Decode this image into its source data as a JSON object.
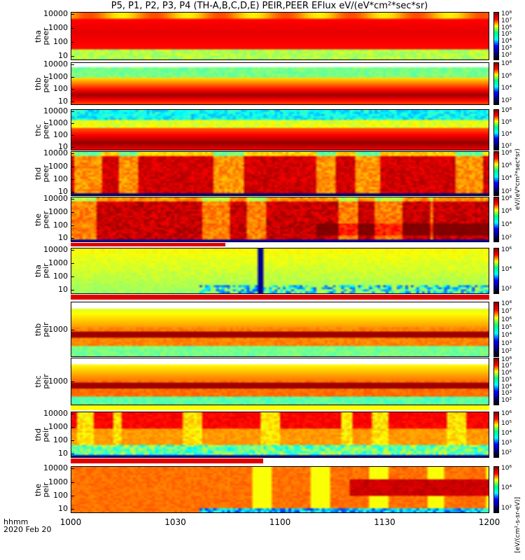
{
  "title": "P5, P1, P2, P3, P4 (TH-A,B,C,D,E) PEIR,PEER EFlux eV/(eV*cm²*sec*sr)",
  "colorbar_label_top": "eV/(eV*cm²*sec*sr)",
  "colorbar_label_bottom": "[eV/(cm²-s-sr-eV)]",
  "x_axis": {
    "ticks": [
      "1000",
      "1030",
      "1100",
      "1130",
      "1200"
    ],
    "label_line1": "hhmm",
    "label_line2": "2020 Feb 20"
  },
  "chart_data": {
    "type": "heatmap",
    "x_range": [
      "10:00",
      "12:00"
    ],
    "panels": [
      {
        "name": "tha peer",
        "line1": "tha",
        "line2": "peer",
        "y_ticks": [
          "10000",
          "1000",
          "100",
          "10"
        ],
        "colorbar_ticks": [
          "10⁸",
          "10⁷",
          "10⁶",
          "10⁵",
          "10⁴",
          "10³",
          "10²"
        ]
      },
      {
        "name": "thb peer",
        "line1": "thb",
        "line2": "peer",
        "y_ticks": [
          "10000",
          "1000",
          "100",
          "10"
        ],
        "colorbar_ticks": [
          "10⁸",
          "10⁶",
          "10⁴",
          "10²"
        ]
      },
      {
        "name": "thc peer",
        "line1": "thc",
        "line2": "peer",
        "y_ticks": [
          "10000",
          "1000",
          "100",
          "10"
        ],
        "colorbar_ticks": [
          "10⁸",
          "10⁶",
          "10⁴",
          "10²"
        ]
      },
      {
        "name": "thd peer",
        "line1": "thd",
        "line2": "peer",
        "y_ticks": [
          "10000",
          "1000",
          "100",
          "10"
        ],
        "colorbar_ticks": [
          "10⁸",
          "10⁶",
          "10⁴",
          "10²"
        ]
      },
      {
        "name": "the peer",
        "line1": "the",
        "line2": "peer",
        "y_ticks": [
          "10000",
          "1000",
          "100",
          "10"
        ],
        "colorbar_ticks": [
          "10⁸",
          "10⁶",
          "10⁴",
          "10²"
        ]
      },
      {
        "name": "tha peir",
        "line1": "tha",
        "line2": "peir",
        "y_ticks": [
          "10000",
          "1000",
          "100",
          "10"
        ],
        "colorbar_ticks": [
          "10⁶",
          "10⁴",
          "10²"
        ]
      },
      {
        "name": "thb peir",
        "line1": "thb",
        "line2": "peir",
        "y_ticks": [
          "1000"
        ],
        "colorbar_ticks": [
          "10⁸",
          "10⁷",
          "10⁶",
          "10⁵",
          "10⁴",
          "10³",
          "10²"
        ]
      },
      {
        "name": "thc peir",
        "line1": "thc",
        "line2": "peir",
        "y_ticks": [
          "1000"
        ],
        "colorbar_ticks": [
          "10⁸",
          "10⁷",
          "10⁶",
          "10⁵",
          "10⁴",
          "10³",
          "10²"
        ]
      },
      {
        "name": "thd peir",
        "line1": "thd",
        "line2": "peir",
        "y_ticks": [
          "10000",
          "1000",
          "100",
          "10"
        ],
        "colorbar_ticks": [
          "10⁶",
          "10⁵",
          "10⁴",
          "10³",
          "10²"
        ]
      },
      {
        "name": "the peir",
        "line1": "the",
        "line2": "peir",
        "y_ticks": [
          "10000",
          "1000",
          "100",
          "10"
        ],
        "colorbar_ticks": [
          "10⁶",
          "10⁴",
          "10²"
        ]
      }
    ]
  }
}
